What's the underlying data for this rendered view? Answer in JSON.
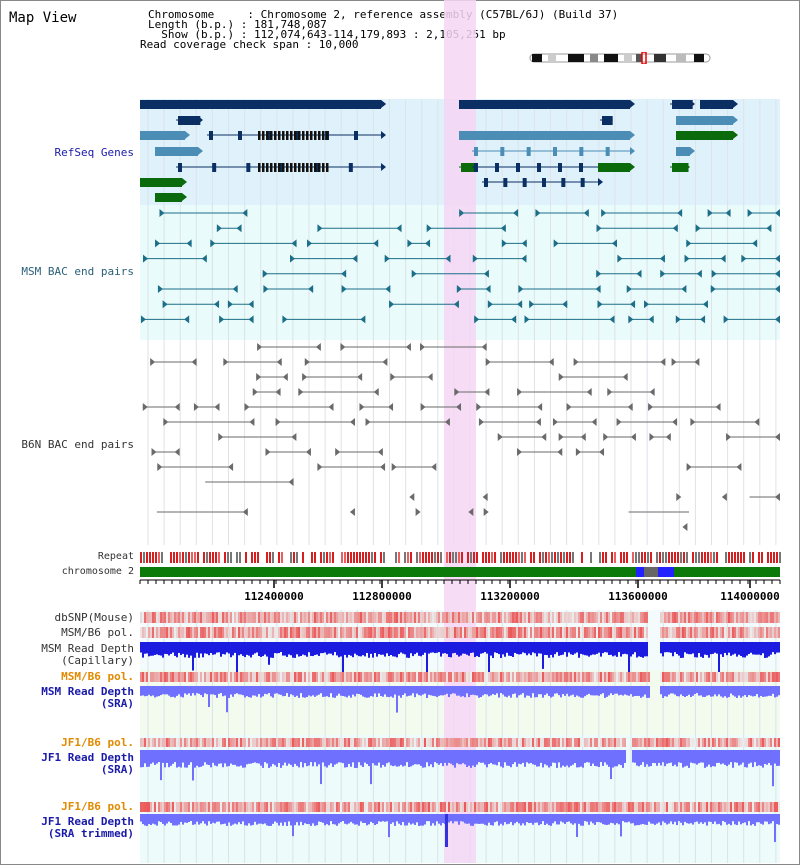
{
  "map_title": "Map View",
  "info": {
    "chromosome_line": "Chromosome     : Chromosome 2, reference assembly (C57BL/6J) (Build 37)",
    "length_line": "Length (b.p.) : 181,748,087",
    "show_line": "  Show (b.p.) : 112,074,643-114,179,893 : 2,105,251 bp",
    "coverage_line": "Read coverage check span : 10,000"
  },
  "track_labels": {
    "refseq": "RefSeq Genes",
    "msm_bac": "MSM BAC end pairs",
    "b6n_bac": "B6N BAC end pairs",
    "repeat": "Repeat",
    "chromosome": "chromosome 2",
    "dbsnp": "dbSNP(Mouse)",
    "msm_b6_pol_cap": "MSM/B6 pol.",
    "msm_depth_cap": "MSM Read Depth\n(Capillary)",
    "msm_b6_pol_sra": "MSM/B6 pol.",
    "msm_depth_sra": "MSM Read Depth\n(SRA)",
    "jf1_b6_pol_sra": "JF1/B6 pol.",
    "jf1_depth_sra": "JF1 Read Depth\n(SRA)",
    "jf1_b6_pol_trim": "JF1/B6 pol.",
    "jf1_depth_trim": "JF1 Read Depth\n(SRA trimmed)"
  },
  "axis_ticks": [
    "112400000",
    "112800000",
    "113200000",
    "113600000",
    "114000000"
  ],
  "colors": {
    "refseq_bg": "#dff1fb",
    "bac_bg": "#e9fbfb",
    "highlight": "#f6d6f4",
    "gene_dark": "#0b2f63",
    "gene_mid": "#4b8db5",
    "gene_green": "#0b6a0b",
    "msm_bac": "#1d6e88",
    "b6n_bac": "#6a6a6a",
    "chromosome": "#0b7a0b",
    "depth_cap": "#1c1ce0",
    "depth_sra": "#7070ff",
    "label_blue": "#1a1aaa",
    "label_teal": "#2a5f78",
    "label_orange": "#e08a00",
    "label_gray": "#333333"
  }
}
